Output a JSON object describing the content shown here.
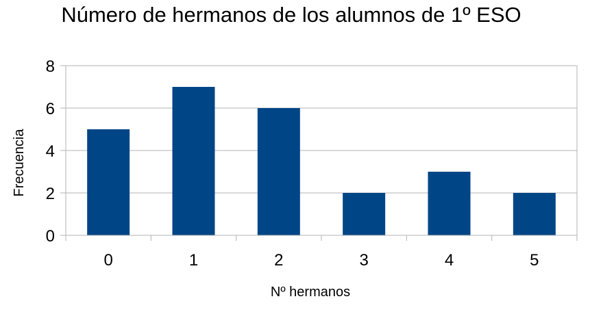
{
  "chart_data": {
    "type": "bar",
    "title": "Número de hermanos de los alumnos de 1º ESO",
    "xlabel": "Nº hermanos",
    "ylabel": "Frecuencia",
    "categories": [
      "0",
      "1",
      "2",
      "3",
      "4",
      "5"
    ],
    "values": [
      5,
      7,
      6,
      2,
      3,
      2
    ],
    "ylim": [
      0,
      8
    ],
    "yticks": [
      "0",
      "2",
      "4",
      "6",
      "8"
    ],
    "grid": true,
    "legend": "none",
    "bar_color": "#004586",
    "grid_color": "#b3b3b3"
  }
}
